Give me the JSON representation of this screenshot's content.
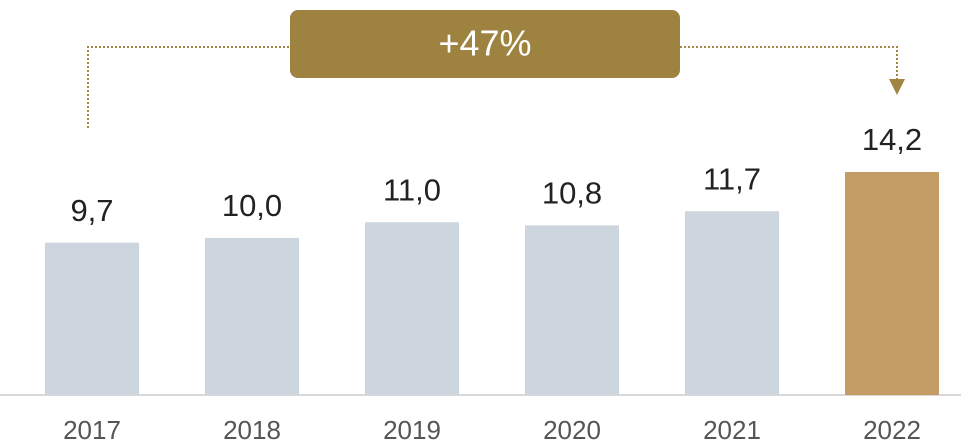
{
  "chart_data": {
    "type": "bar",
    "categories": [
      "2017",
      "2018",
      "2019",
      "2020",
      "2021",
      "2022"
    ],
    "values": [
      9.7,
      10.0,
      11.0,
      10.8,
      11.7,
      14.2
    ],
    "value_labels": [
      "9,7",
      "10,0",
      "11,0",
      "10,8",
      "11,7",
      "14,2"
    ],
    "colors": [
      "#cdd5de",
      "#cdd5de",
      "#cdd5de",
      "#cdd5de",
      "#cdd5de",
      "#c49c65"
    ],
    "annotation": "+47%"
  }
}
